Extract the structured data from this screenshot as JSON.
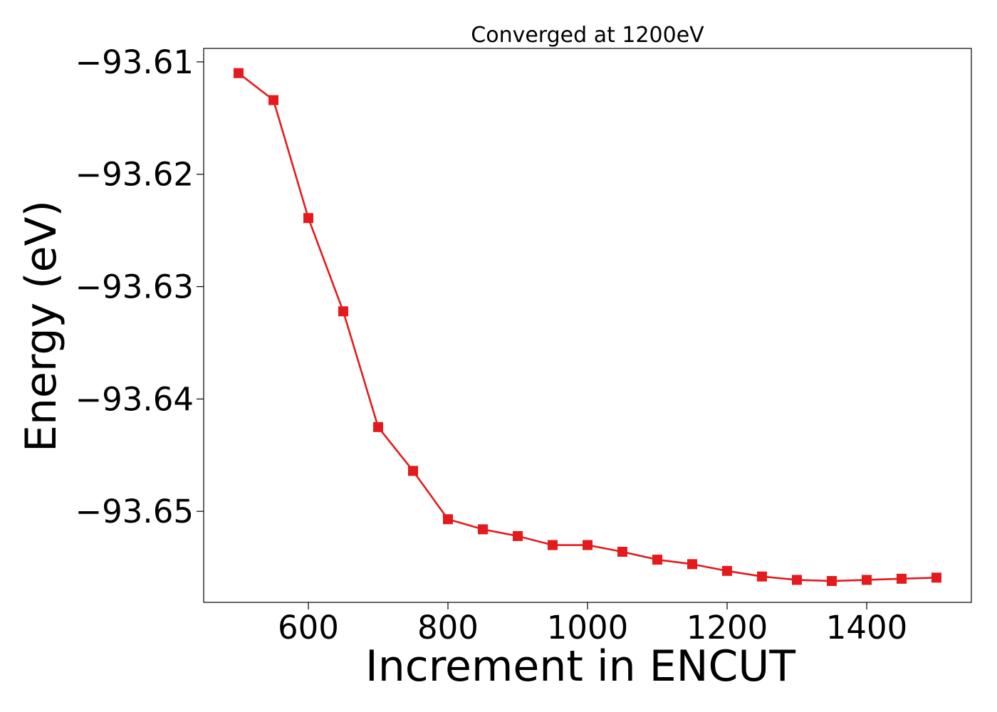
{
  "chart_data": {
    "type": "line",
    "title": "Converged at 1200eV",
    "xlabel": "Increment in ENCUT",
    "ylabel": "Energy (eV)",
    "xlim": [
      450,
      1550
    ],
    "ylim": [
      -93.6581,
      -93.6088
    ],
    "x_ticks": [
      600,
      800,
      1000,
      1200,
      1400
    ],
    "y_ticks": [
      -93.61,
      -93.62,
      -93.63,
      -93.64,
      -93.65
    ],
    "x_tick_labels": [
      "600",
      "800",
      "1000",
      "1200",
      "1400"
    ],
    "y_tick_labels": [
      "−93.61",
      "−93.62",
      "−93.63",
      "−93.64",
      "−93.65"
    ],
    "grid": false,
    "legend": false,
    "marker": "square",
    "color": "#e41a1c",
    "series": [
      {
        "x": [
          500,
          550,
          600,
          650,
          700,
          750,
          800,
          850,
          900,
          950,
          1000,
          1050,
          1100,
          1150,
          1200,
          1250,
          1300,
          1350,
          1400,
          1450,
          1500
        ],
        "values": [
          -93.611,
          -93.6134,
          -93.6239,
          -93.6322,
          -93.6425,
          -93.6464,
          -93.6507,
          -93.6516,
          -93.6522,
          -93.653,
          -93.653,
          -93.6536,
          -93.6543,
          -93.6547,
          -93.6553,
          -93.6558,
          -93.6561,
          -93.6562,
          -93.6561,
          -93.656,
          -93.6559
        ]
      }
    ]
  }
}
